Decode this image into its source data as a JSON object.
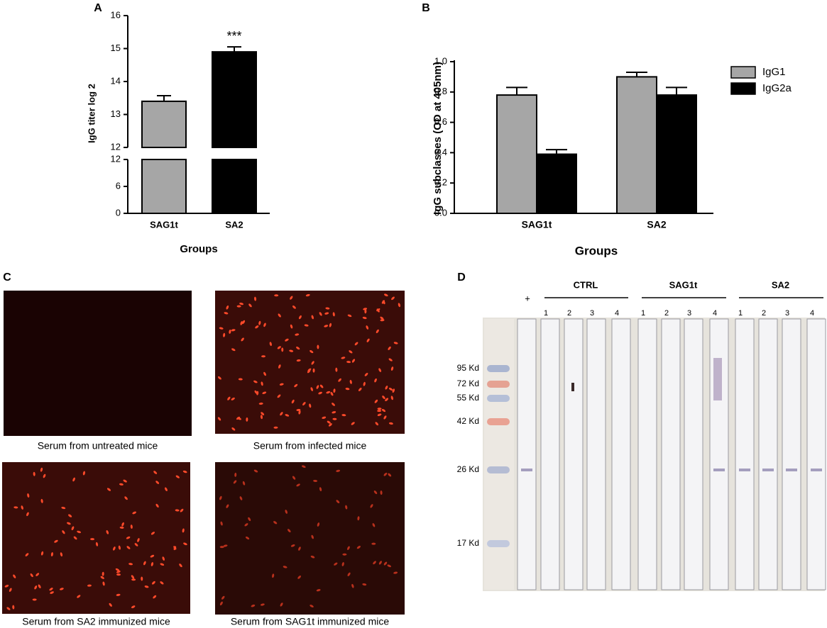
{
  "chart_data": [
    {
      "type": "bar",
      "panel_label": "A",
      "y_label": "IgG titer log 2",
      "x_label": "Groups",
      "categories": [
        "SAG1t",
        "SA2"
      ],
      "values": [
        13.4,
        14.9
      ],
      "errors": [
        0.17,
        0.15
      ],
      "colors": [
        "#a6a6a6",
        "#000000"
      ],
      "annotation": {
        "category": "SA2",
        "text": "***"
      },
      "broken_axis": true,
      "ylim_lower": [
        0,
        12
      ],
      "yticks_lower": [
        0,
        6,
        12
      ],
      "ylim_upper": [
        12,
        16
      ],
      "yticks_upper": [
        12,
        13,
        14,
        15,
        16
      ]
    },
    {
      "type": "grouped_bar",
      "panel_label": "B",
      "y_label": "IgG subclasses (OD at 405nm)",
      "x_label": "Groups",
      "categories": [
        "SAG1t",
        "SA2"
      ],
      "series": [
        {
          "name": "IgG1",
          "color": "#a6a6a6",
          "values": [
            0.78,
            0.9
          ],
          "errors": [
            0.05,
            0.03
          ]
        },
        {
          "name": "IgG2a",
          "color": "#000000",
          "values": [
            0.39,
            0.78
          ],
          "errors": [
            0.03,
            0.05
          ]
        }
      ],
      "ylim": [
        0,
        1.0
      ],
      "yticks": [
        {
          "value": 0,
          "label": "0.0"
        },
        {
          "value": 0.2,
          "label": "0.2"
        },
        {
          "value": 0.4,
          "label": "0.4"
        },
        {
          "value": 0.6,
          "label": "0.6"
        },
        {
          "value": 0.8,
          "label": "0.8"
        },
        {
          "value": 1.0,
          "label": "1.0"
        }
      ],
      "legend": "top-right"
    }
  ],
  "micrographs": {
    "panel_label": "C",
    "images": [
      {
        "caption": "Serum from untreated mice"
      },
      {
        "caption": "Serum from infected mice"
      },
      {
        "caption": "Serum from SA2 immunized mice"
      },
      {
        "caption": "Serum from SAG1t immunized mice"
      }
    ]
  },
  "blot": {
    "panel_label": "D",
    "positive_label": "+",
    "groups": [
      {
        "label": "CTRL",
        "lanes": [
          1,
          2,
          3,
          4
        ]
      },
      {
        "label": "SAG1t",
        "lanes": [
          1,
          2,
          3,
          4
        ]
      },
      {
        "label": "SA2",
        "lanes": [
          1,
          2,
          3,
          4
        ]
      }
    ],
    "markers": [
      "95 Kd",
      "72 Kd",
      "55 Kd",
      "42 Kd",
      "26 Kd",
      "17 Kd"
    ]
  }
}
